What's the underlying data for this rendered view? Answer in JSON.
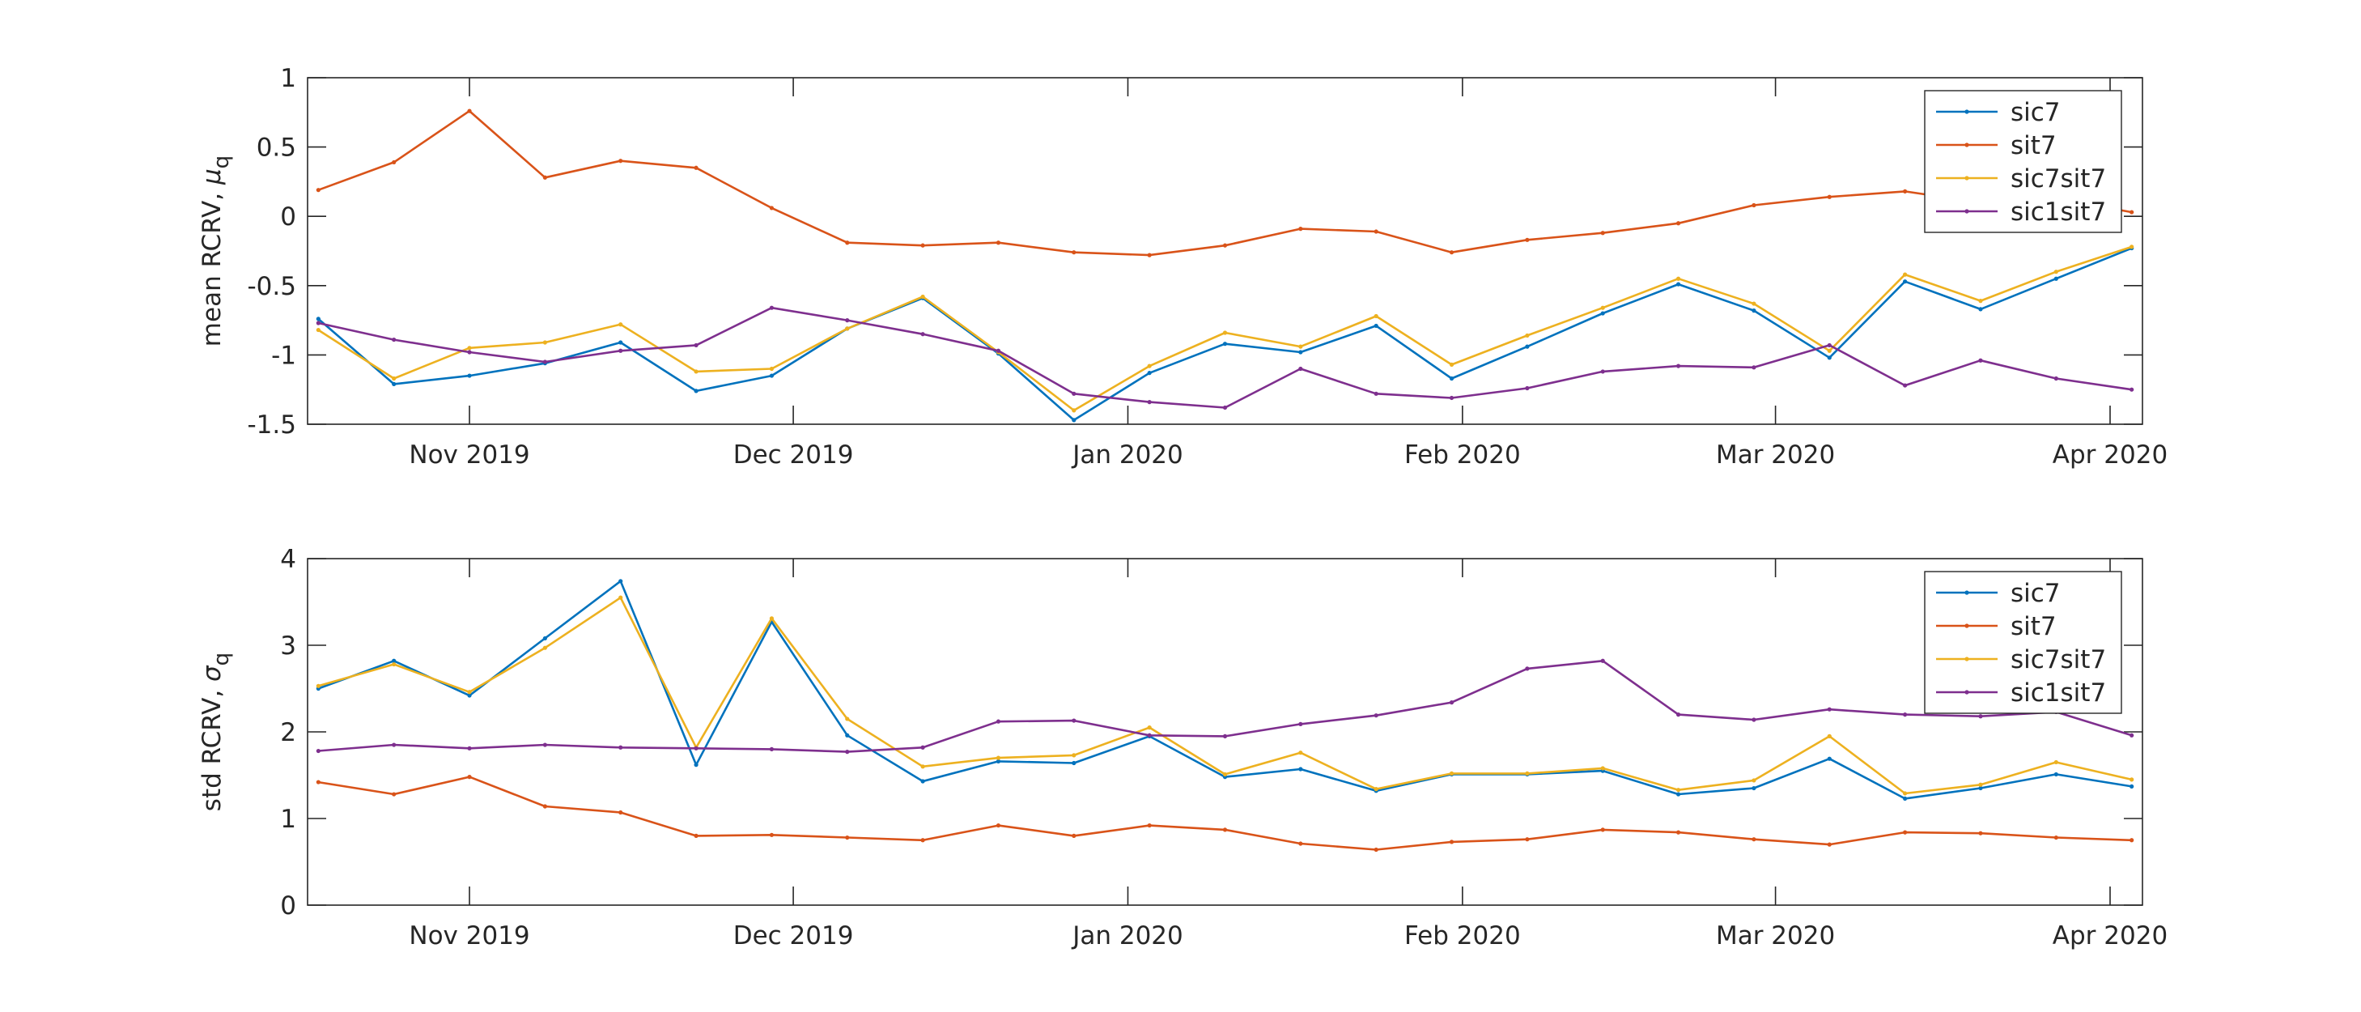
{
  "chart_data": [
    {
      "type": "line",
      "ylabel": "mean RCRV, ",
      "ylabel_symbol": "μ",
      "ylabel_subscript": "q",
      "xlabel": "",
      "title": "",
      "ylim": [
        -1.5,
        1
      ],
      "yticks": [
        -1.5,
        -1,
        -0.5,
        0,
        0.5,
        1
      ],
      "ytick_labels": [
        "-1.5",
        "-1",
        "-0.5",
        "0",
        "0.5",
        "1"
      ],
      "xlim": [
        "2019-10-17",
        "2020-04-04"
      ],
      "xticks": [
        "2019-11-01",
        "2019-12-01",
        "2020-01-01",
        "2020-02-01",
        "2020-03-01",
        "2020-04-01"
      ],
      "xtick_labels": [
        "Nov 2019",
        "Dec 2019",
        "Jan 2020",
        "Feb 2020",
        "Mar 2020",
        "Apr 2020"
      ],
      "grid": false,
      "legend_location": "top-right",
      "x": [
        "2019-10-18",
        "2019-10-25",
        "2019-11-01",
        "2019-11-08",
        "2019-11-15",
        "2019-11-22",
        "2019-11-29",
        "2019-12-06",
        "2019-12-13",
        "2019-12-20",
        "2019-12-27",
        "2020-01-03",
        "2020-01-10",
        "2020-01-17",
        "2020-01-24",
        "2020-01-31",
        "2020-02-07",
        "2020-02-14",
        "2020-02-21",
        "2020-02-28",
        "2020-03-06",
        "2020-03-13",
        "2020-03-20",
        "2020-03-27",
        "2020-04-03"
      ],
      "series": [
        {
          "name": "sic7",
          "color": "#0072BD",
          "values": [
            -0.74,
            -1.21,
            -1.15,
            -1.06,
            -0.91,
            -1.26,
            -1.15,
            -0.81,
            -0.59,
            -0.99,
            -1.47,
            -1.13,
            -0.92,
            -0.98,
            -0.79,
            -1.17,
            -0.94,
            -0.7,
            -0.49,
            -0.68,
            -1.02,
            -0.47,
            -0.67,
            -0.45,
            -0.23
          ]
        },
        {
          "name": "sit7",
          "color": "#D95319",
          "values": [
            0.19,
            0.39,
            0.76,
            0.28,
            0.4,
            0.35,
            0.06,
            -0.19,
            -0.21,
            -0.19,
            -0.26,
            -0.28,
            -0.21,
            -0.09,
            -0.11,
            -0.26,
            -0.17,
            -0.12,
            -0.05,
            0.08,
            0.14,
            0.18,
            0.1,
            0.13,
            0.03
          ]
        },
        {
          "name": "sic7sit7",
          "color": "#EDB120",
          "values": [
            -0.82,
            -1.17,
            -0.95,
            -0.91,
            -0.78,
            -1.12,
            -1.1,
            -0.81,
            -0.58,
            -0.98,
            -1.4,
            -1.08,
            -0.84,
            -0.94,
            -0.72,
            -1.07,
            -0.86,
            -0.66,
            -0.45,
            -0.63,
            -0.97,
            -0.42,
            -0.61,
            -0.4,
            -0.22
          ]
        },
        {
          "name": "sic1sit7",
          "color": "#7E2F8E",
          "values": [
            -0.77,
            -0.89,
            -0.98,
            -1.05,
            -0.97,
            -0.93,
            -0.66,
            -0.75,
            -0.85,
            -0.97,
            -1.28,
            -1.34,
            -1.38,
            -1.1,
            -1.28,
            -1.31,
            -1.24,
            -1.12,
            -1.08,
            -1.09,
            -0.93,
            -1.22,
            -1.04,
            -1.17,
            -1.25
          ]
        }
      ]
    },
    {
      "type": "line",
      "ylabel": "std RCRV, ",
      "ylabel_symbol": "σ",
      "ylabel_subscript": "q",
      "xlabel": "",
      "title": "",
      "ylim": [
        0,
        4
      ],
      "yticks": [
        0,
        1,
        2,
        3,
        4
      ],
      "ytick_labels": [
        "0",
        "1",
        "2",
        "3",
        "4"
      ],
      "xlim": [
        "2019-10-17",
        "2020-04-04"
      ],
      "xticks": [
        "2019-11-01",
        "2019-12-01",
        "2020-01-01",
        "2020-02-01",
        "2020-03-01",
        "2020-04-01"
      ],
      "xtick_labels": [
        "Nov 2019",
        "Dec 2019",
        "Jan 2020",
        "Feb 2020",
        "Mar 2020",
        "Apr 2020"
      ],
      "grid": false,
      "legend_location": "top-right",
      "x": [
        "2019-10-18",
        "2019-10-25",
        "2019-11-01",
        "2019-11-08",
        "2019-11-15",
        "2019-11-22",
        "2019-11-29",
        "2019-12-06",
        "2019-12-13",
        "2019-12-20",
        "2019-12-27",
        "2020-01-03",
        "2020-01-10",
        "2020-01-17",
        "2020-01-24",
        "2020-01-31",
        "2020-02-07",
        "2020-02-14",
        "2020-02-21",
        "2020-02-28",
        "2020-03-06",
        "2020-03-13",
        "2020-03-20",
        "2020-03-27",
        "2020-04-03"
      ],
      "series": [
        {
          "name": "sic7",
          "color": "#0072BD",
          "values": [
            2.5,
            2.82,
            2.42,
            3.08,
            3.74,
            1.62,
            3.27,
            1.96,
            1.43,
            1.66,
            1.64,
            1.95,
            1.48,
            1.57,
            1.32,
            1.51,
            1.51,
            1.55,
            1.28,
            1.35,
            1.69,
            1.23,
            1.35,
            1.51,
            1.37
          ]
        },
        {
          "name": "sit7",
          "color": "#D95319",
          "values": [
            1.42,
            1.28,
            1.48,
            1.14,
            1.07,
            0.8,
            0.81,
            0.78,
            0.75,
            0.92,
            0.8,
            0.92,
            0.87,
            0.71,
            0.64,
            0.73,
            0.76,
            0.87,
            0.84,
            0.76,
            0.7,
            0.84,
            0.83,
            0.78,
            0.75
          ]
        },
        {
          "name": "sic7sit7",
          "color": "#EDB120",
          "values": [
            2.53,
            2.78,
            2.46,
            2.97,
            3.55,
            1.82,
            3.31,
            2.15,
            1.6,
            1.7,
            1.73,
            2.05,
            1.51,
            1.76,
            1.34,
            1.52,
            1.52,
            1.58,
            1.33,
            1.44,
            1.95,
            1.29,
            1.39,
            1.65,
            1.45
          ]
        },
        {
          "name": "sic1sit7",
          "color": "#7E2F8E",
          "values": [
            1.78,
            1.85,
            1.81,
            1.85,
            1.82,
            1.81,
            1.8,
            1.77,
            1.82,
            2.12,
            2.13,
            1.96,
            1.95,
            2.09,
            2.19,
            2.34,
            2.73,
            2.82,
            2.2,
            2.14,
            2.26,
            2.2,
            2.18,
            2.23,
            1.96
          ]
        }
      ]
    }
  ]
}
